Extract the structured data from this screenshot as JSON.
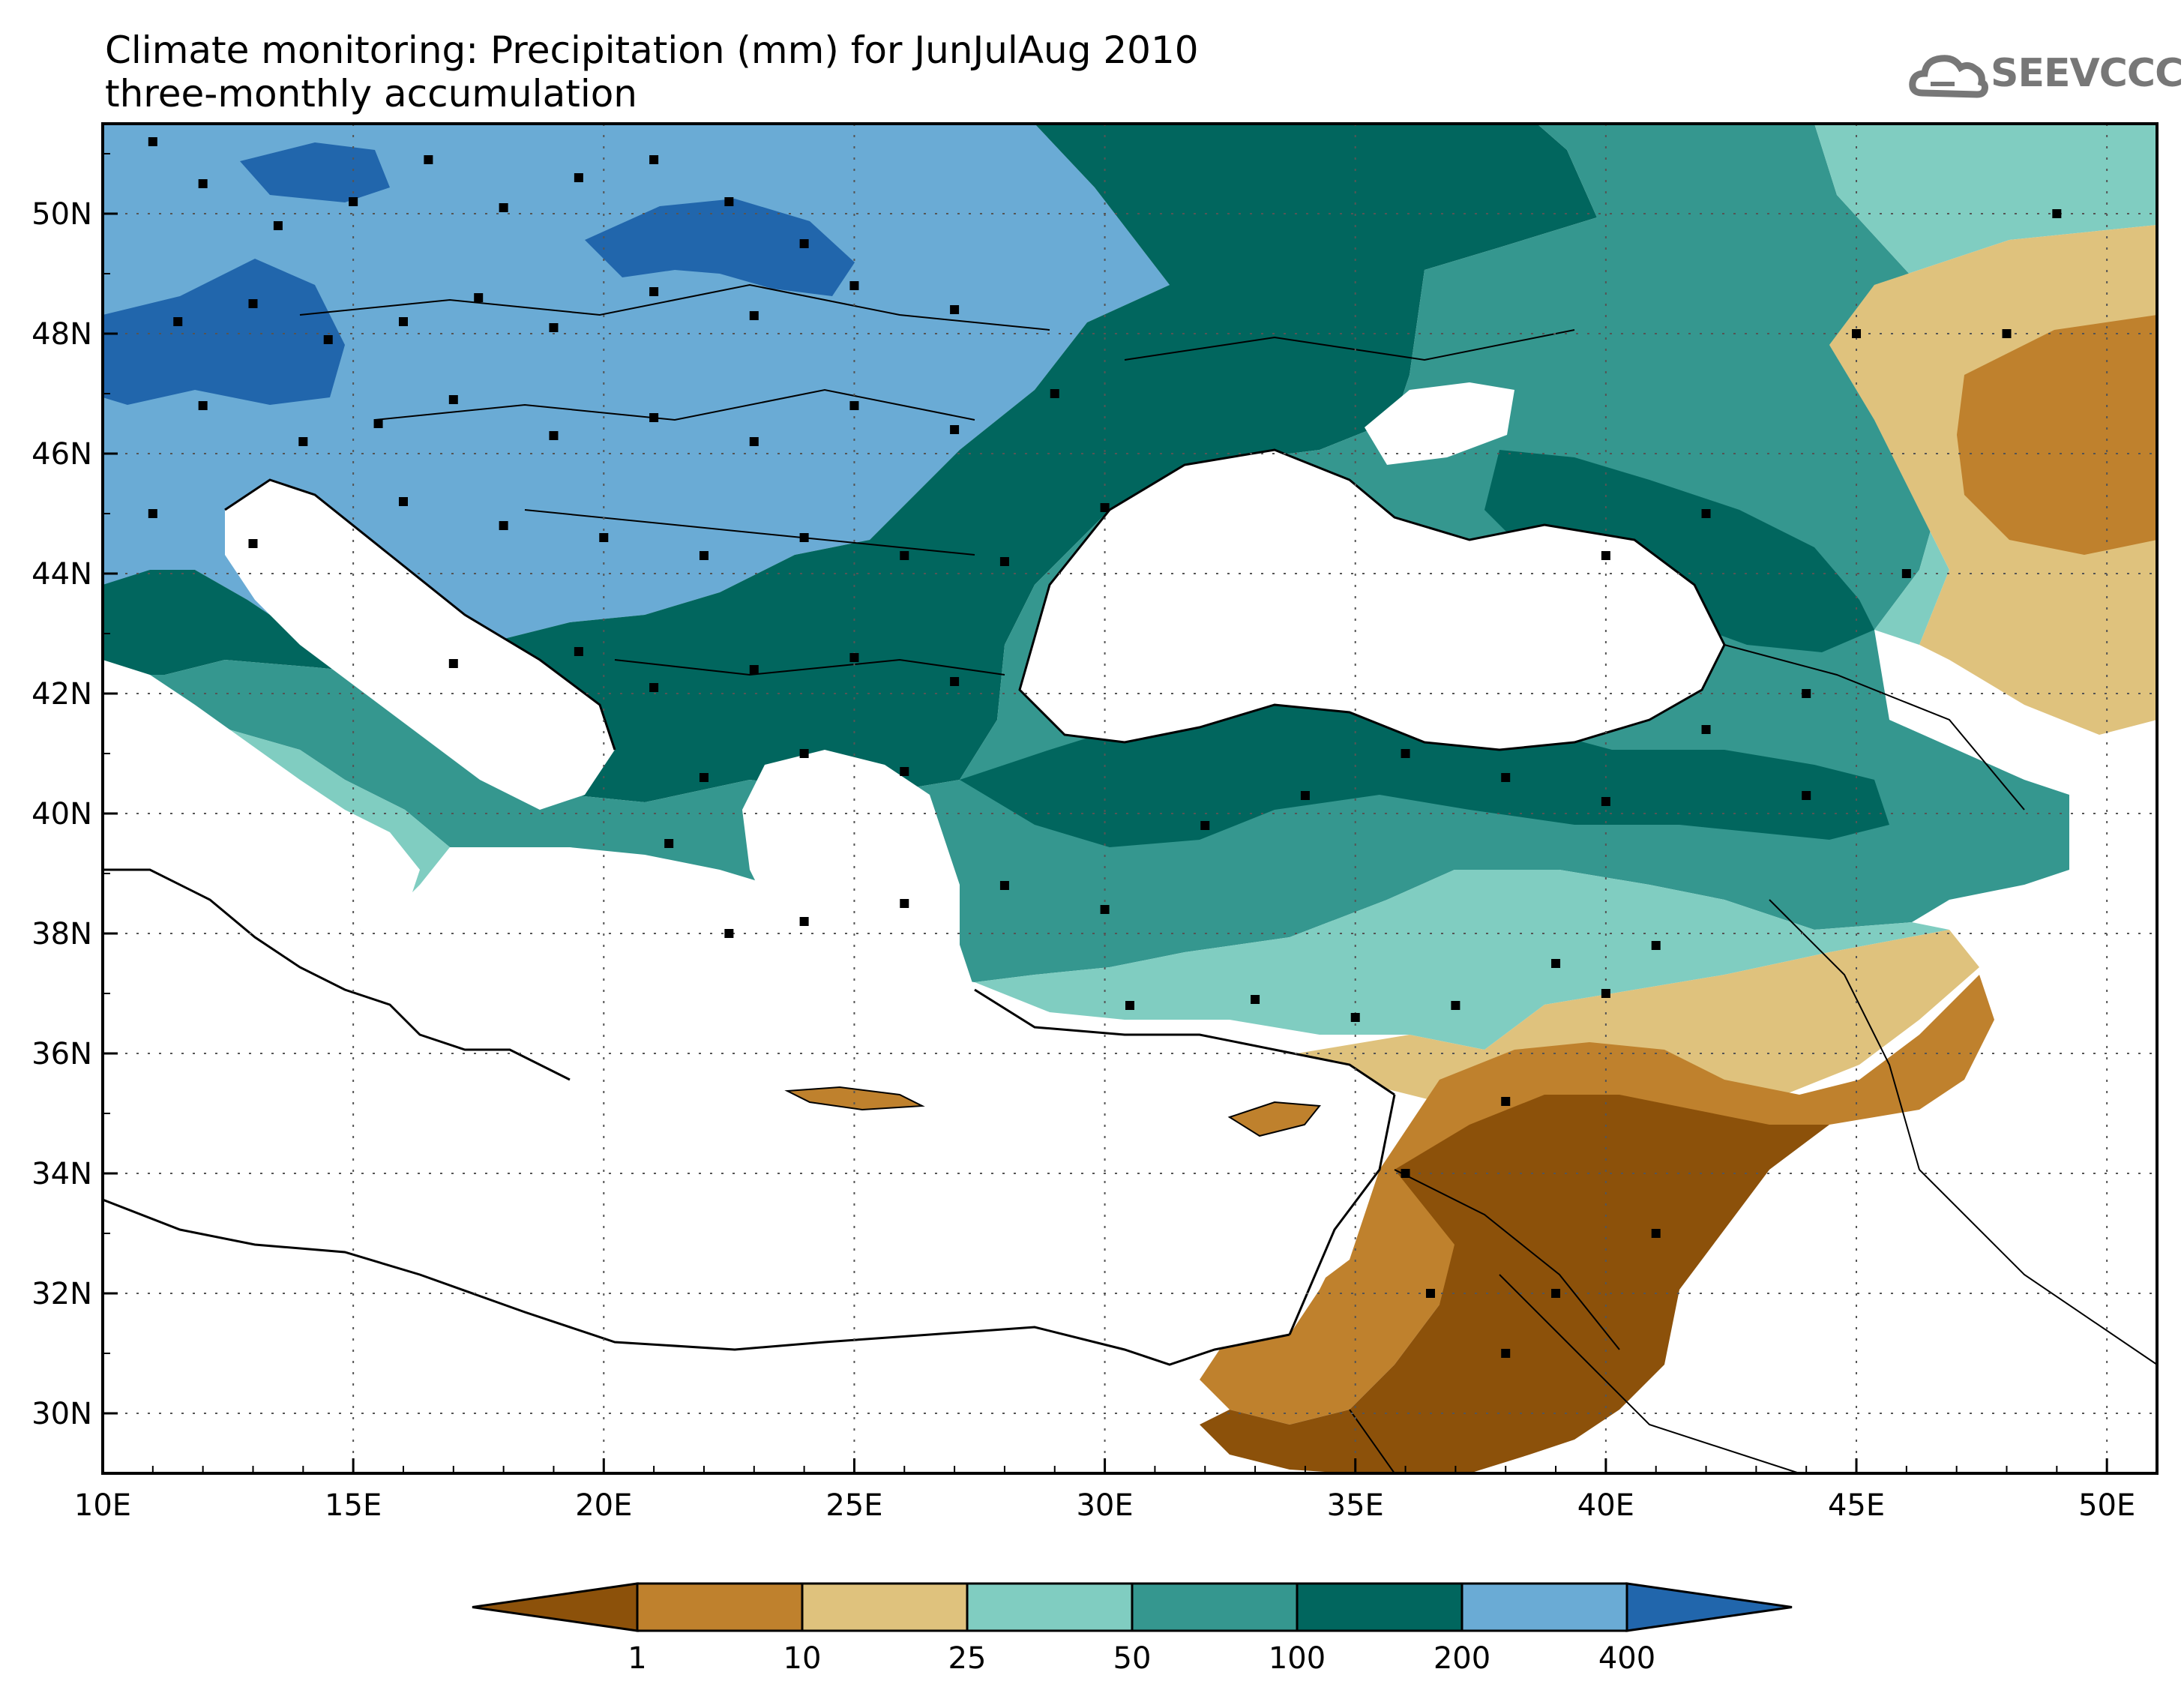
{
  "title": {
    "line1": "Climate monitoring: Precipitation (mm) for JunJulAug 2010",
    "line2": "three-monthly accumulation"
  },
  "logo": {
    "text": "SEEVCCC",
    "icon": "cloud-logo-icon"
  },
  "map": {
    "x_ticks": [
      "10E",
      "15E",
      "20E",
      "25E",
      "30E",
      "35E",
      "40E",
      "45E",
      "50E"
    ],
    "y_ticks": [
      "50N",
      "48N",
      "46N",
      "44N",
      "42N",
      "40N",
      "38N",
      "36N",
      "34N",
      "32N",
      "30N"
    ],
    "lon_range": [
      10,
      51
    ],
    "lat_range": [
      29,
      51.5
    ],
    "grid": true
  },
  "colorbar": {
    "labels": [
      "1",
      "10",
      "25",
      "50",
      "100",
      "200",
      "400"
    ],
    "colors": [
      "#8c510a",
      "#bf812d",
      "#dfc27d",
      "#80cdc1",
      "#35978f",
      "#01665e",
      "#6aabd5",
      "#2166ac"
    ]
  }
}
